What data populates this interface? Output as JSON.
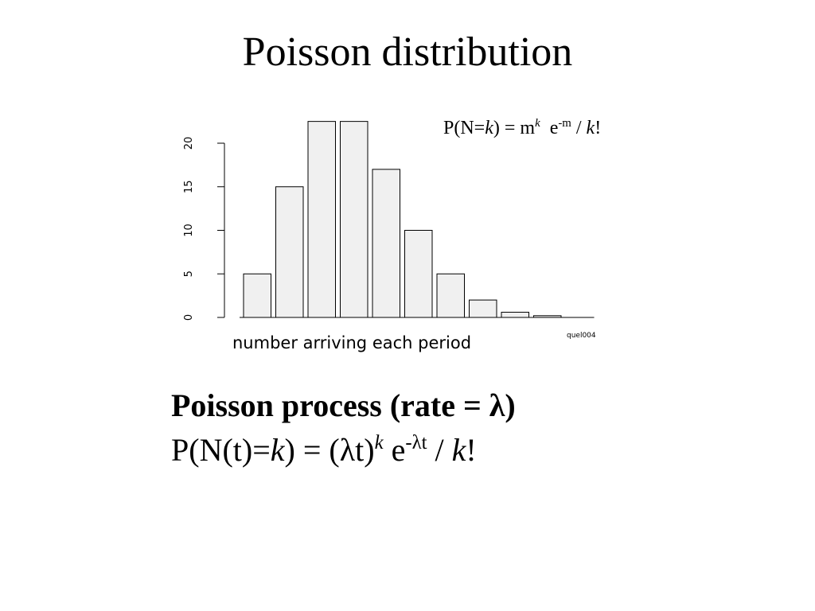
{
  "chart_data": {
    "type": "bar",
    "title": "Poisson distribution",
    "formula": [
      "P(N=",
      "k",
      ") = m",
      "k",
      "e",
      "-m",
      " / ",
      "k",
      "!"
    ],
    "x_label": "number arriving each period",
    "source": "quel004",
    "values": [
      5,
      15,
      22.5,
      22.5,
      17,
      10,
      5,
      2,
      0.6,
      0.2,
      0
    ],
    "color": "#f0f0f0",
    "ylim": [
      0,
      20
    ],
    "yticks": [
      0,
      5,
      10,
      15,
      20
    ]
  },
  "process": {
    "heading": "Poisson process (rate = λ)",
    "formula": [
      "P(N(t)=",
      "k",
      ") = (λt)",
      "k",
      "e",
      "-λt",
      " / ",
      "k",
      "!"
    ]
  }
}
